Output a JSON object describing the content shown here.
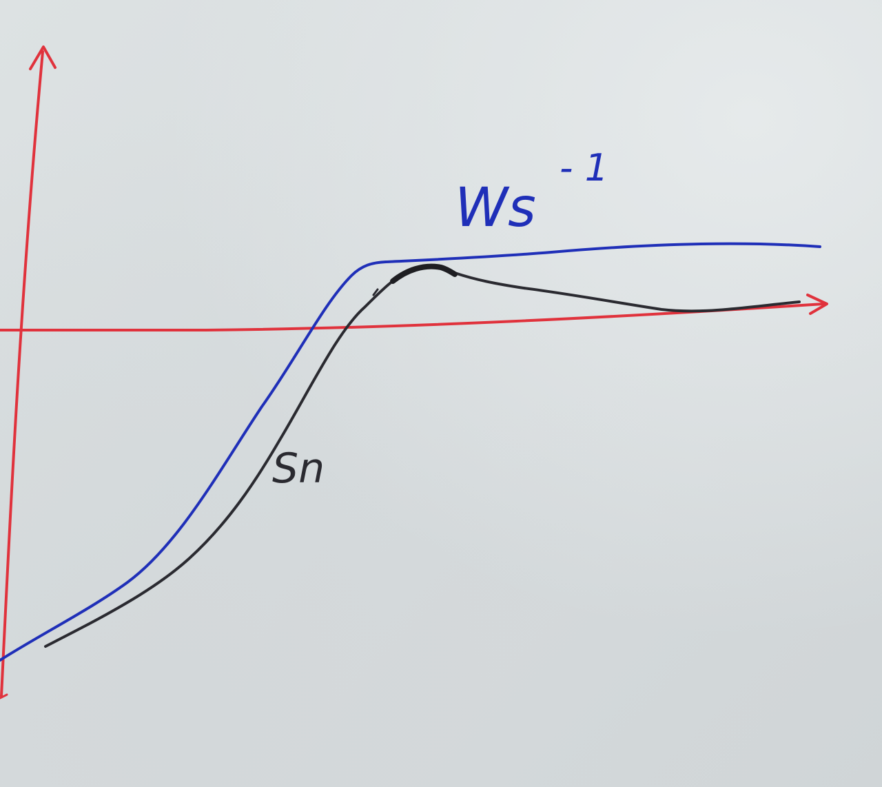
{
  "colors": {
    "axis": "#e0323c",
    "curve_ws": "#1f2fb8",
    "curve_sn": "#2a2a30",
    "paper": "#d9dee0"
  },
  "labels": {
    "ws_main": "Ws",
    "ws_exp": "- 1",
    "sn": "Sn"
  }
}
